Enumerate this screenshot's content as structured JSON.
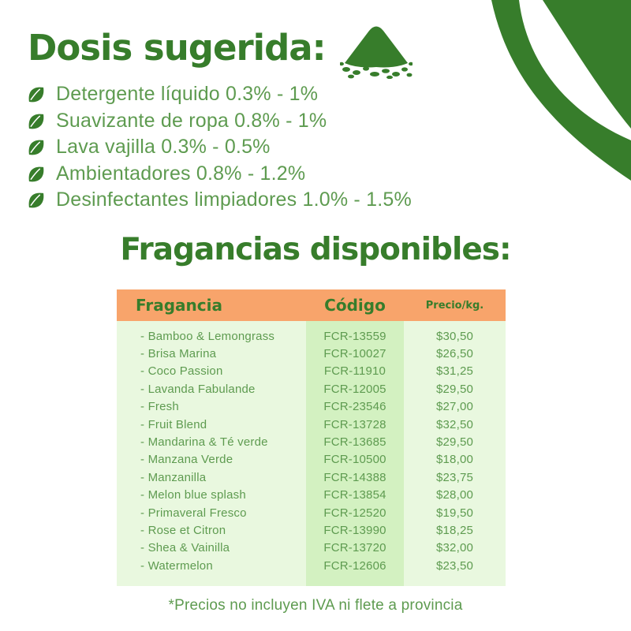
{
  "colors": {
    "dark_green": "#377D2B",
    "text_green": "#5E9B50",
    "header_orange": "#F8A46B",
    "column_light_green": "#E9F8DF",
    "column_mid_green": "#D3F1C1",
    "background": "#FFFFFF"
  },
  "icons": {
    "corner": "leaf-corner-decoration",
    "title": "powder-pile-icon",
    "bullet": "leaf-icon"
  },
  "header": {
    "title": "Dosis sugerida:"
  },
  "dosage_list": [
    "Detergente líquido 0.3% - 1%",
    "Suavizante de ropa  0.8% - 1%",
    "Lava vajilla 0.3% - 0.5%",
    "Ambientadores 0.8% - 1.2%",
    "Desinfectantes limpiadores 1.0% - 1.5%"
  ],
  "section": {
    "title": "Fragancias disponibles:"
  },
  "table": {
    "headers": [
      "Fragancia",
      "Código",
      "Precio/kg."
    ],
    "row_prefix": "- ",
    "rows": [
      {
        "name": "Bamboo & Lemongrass",
        "code": "FCR-13559",
        "price": "$30,50"
      },
      {
        "name": "Brisa Marina",
        "code": "FCR-10027",
        "price": "$26,50"
      },
      {
        "name": "Coco Passion",
        "code": "FCR-11910",
        "price": "$31,25"
      },
      {
        "name": "Lavanda Fabulande",
        "code": "FCR-12005",
        "price": "$29,50"
      },
      {
        "name": "Fresh",
        "code": "FCR-23546",
        "price": "$27,00"
      },
      {
        "name": "Fruit Blend",
        "code": "FCR-13728",
        "price": "$32,50"
      },
      {
        "name": "Mandarina & Té verde",
        "code": "FCR-13685",
        "price": "$29,50"
      },
      {
        "name": "Manzana Verde",
        "code": "FCR-10500",
        "price": "$18,00"
      },
      {
        "name": "Manzanilla",
        "code": "FCR-14388",
        "price": "$23,75"
      },
      {
        "name": "Melon blue splash",
        "code": "FCR-13854",
        "price": "$28,00"
      },
      {
        "name": "Primaveral Fresco",
        "code": "FCR-12520",
        "price": "$19,50"
      },
      {
        "name": "Rose et Citron",
        "code": "FCR-13990",
        "price": "$18,25"
      },
      {
        "name": "Shea & Vainilla",
        "code": "FCR-13720",
        "price": "$32,00"
      },
      {
        "name": "Watermelon",
        "code": "FCR-12606",
        "price": "$23,50"
      }
    ]
  },
  "footnote": "*Precios no incluyen IVA ni flete a provincia"
}
